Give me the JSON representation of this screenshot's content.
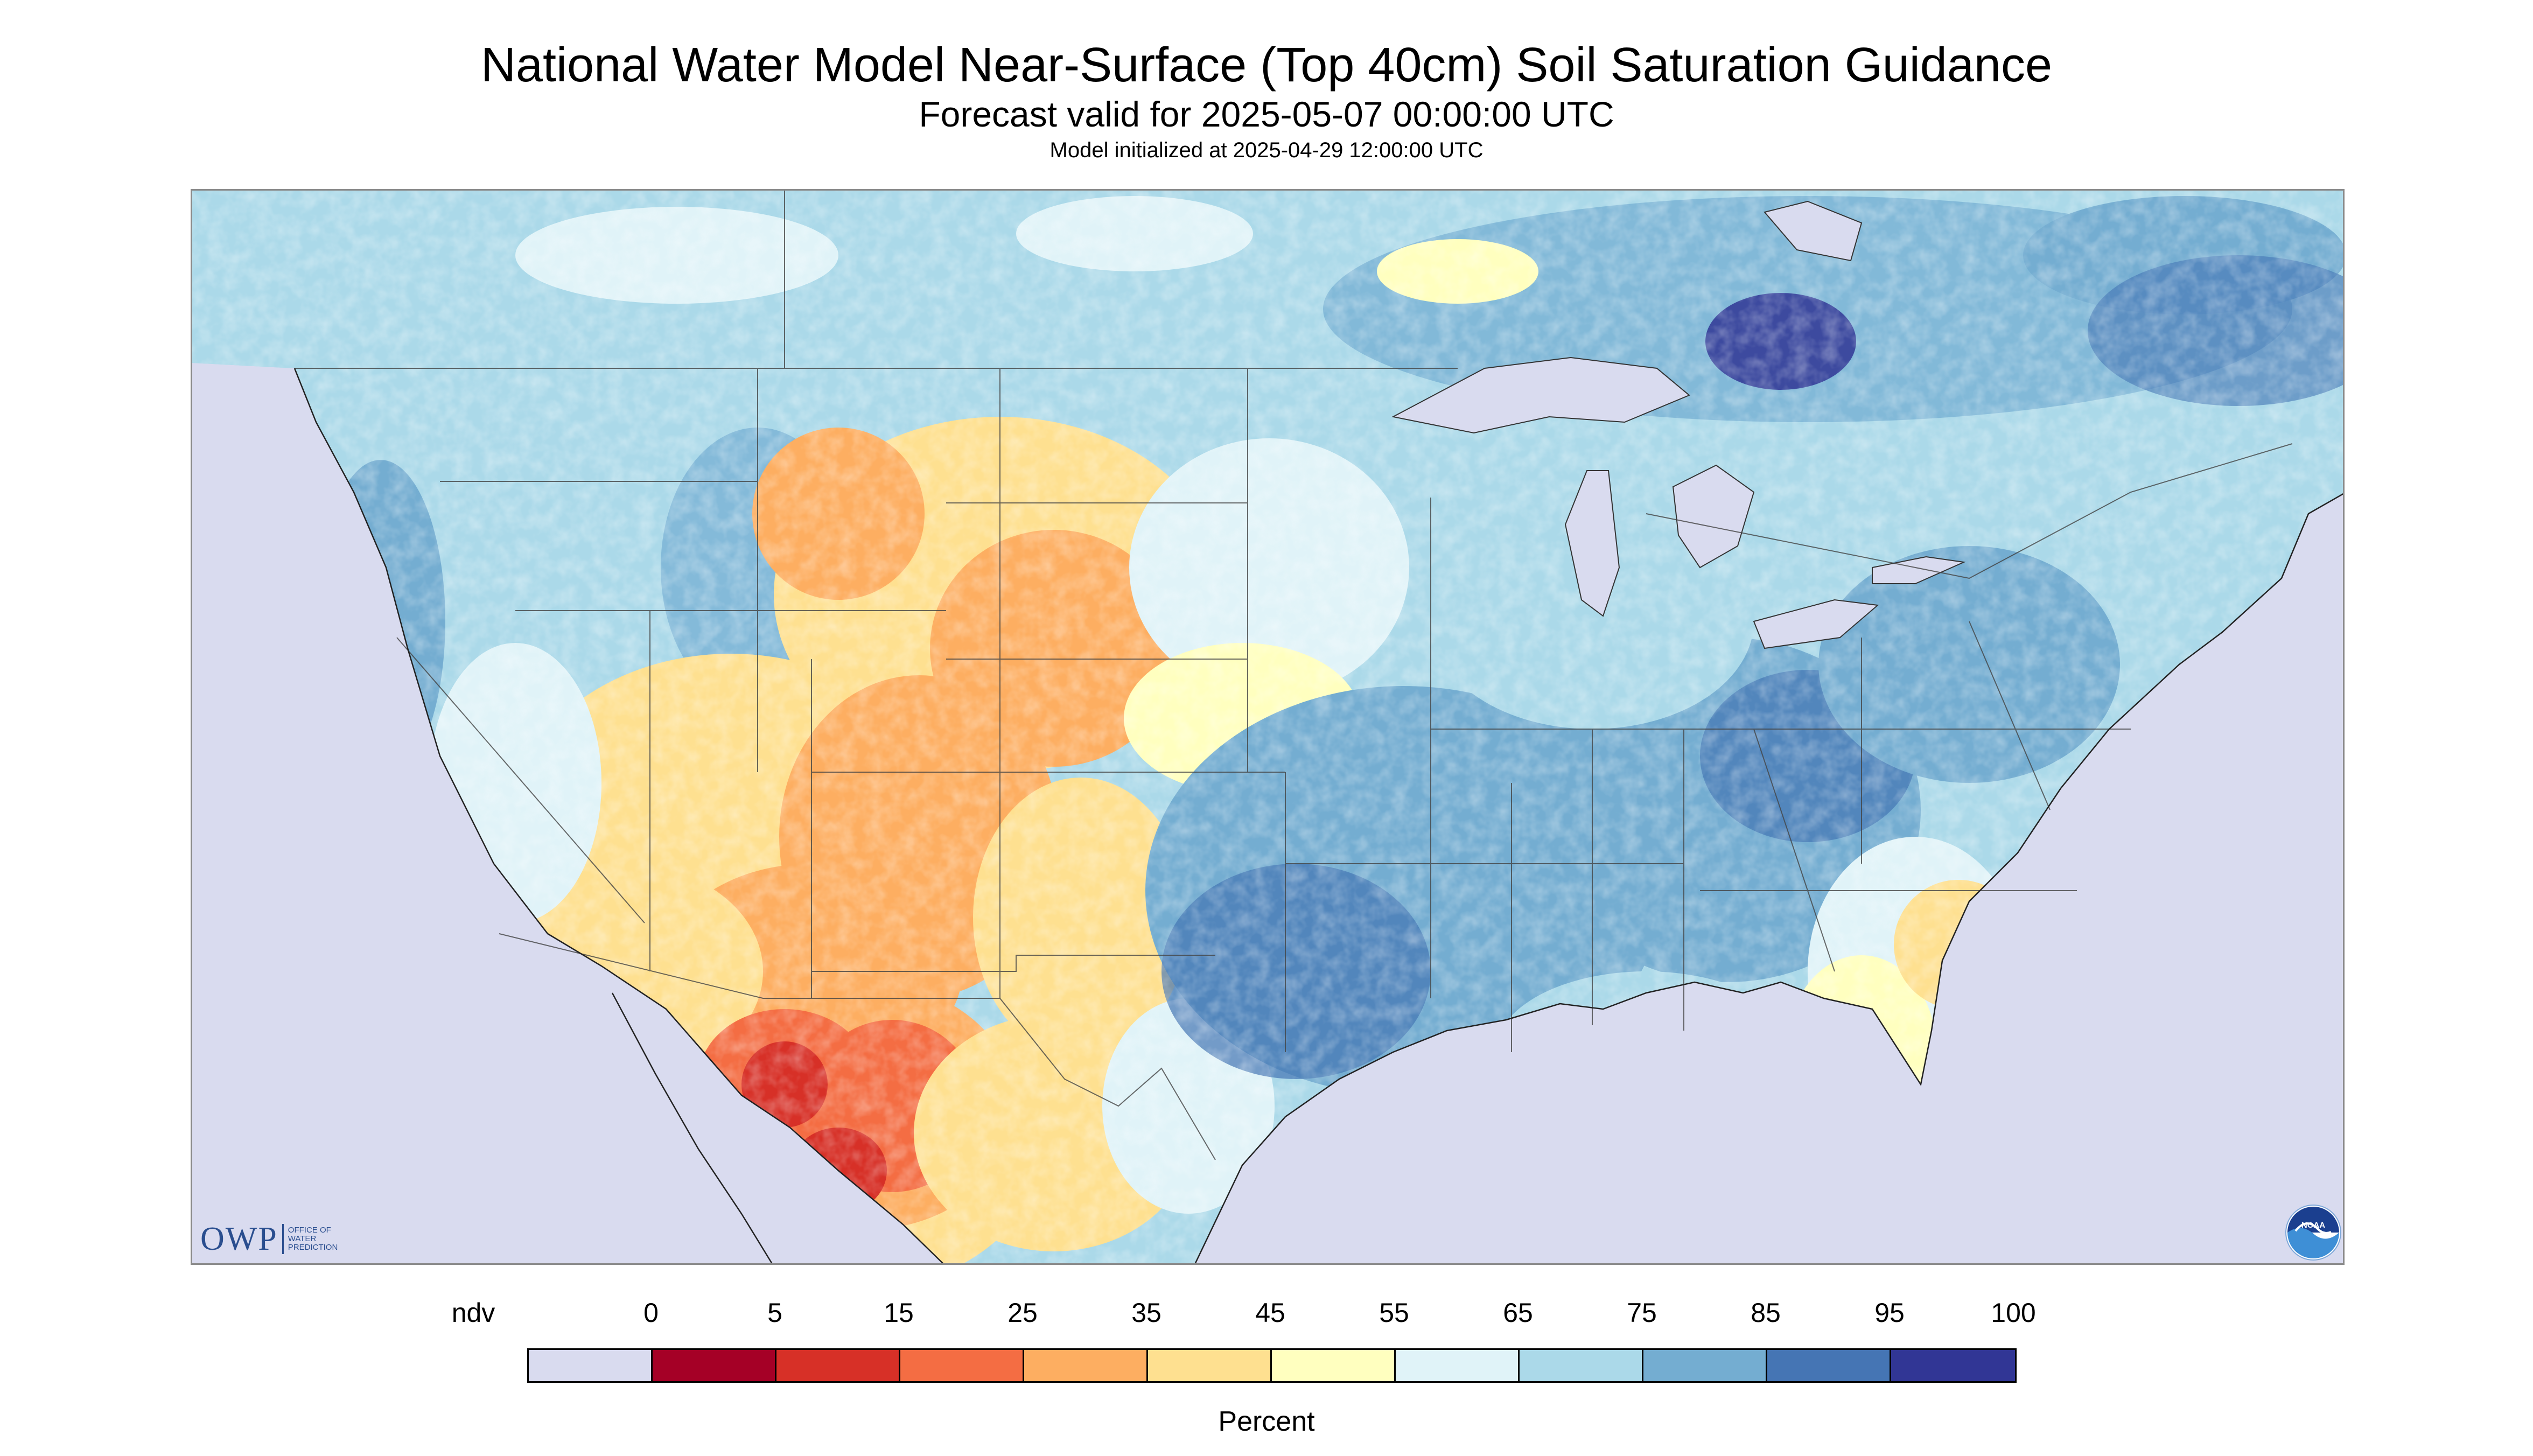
{
  "title": "National Water Model Near-Surface (Top 40cm) Soil Saturation Guidance",
  "subtitle": "Forecast valid for 2025-05-07 00:00:00 UTC",
  "init": "Model initialized at 2025-04-29 12:00:00 UTC",
  "logo_owp": {
    "mark": "OWP",
    "text_lines": [
      "Office of",
      "Water",
      "Prediction"
    ],
    "color": "#2a4e8f"
  },
  "logo_noaa": {
    "text": "NOAA"
  },
  "legend": {
    "labels": [
      "ndv",
      "0",
      "5",
      "15",
      "25",
      "35",
      "45",
      "55",
      "65",
      "75",
      "85",
      "95",
      "100"
    ],
    "colors": [
      "#d9dbef",
      "#a50026",
      "#d73027",
      "#f46d43",
      "#fdae61",
      "#fee090",
      "#ffffbf",
      "#e0f3f8",
      "#abd9e9",
      "#74add1",
      "#4575b4",
      "#313695"
    ],
    "unit": "Percent"
  },
  "map": {
    "nodata_color": "#d9dbef",
    "water_color": "#d9dbef"
  }
}
